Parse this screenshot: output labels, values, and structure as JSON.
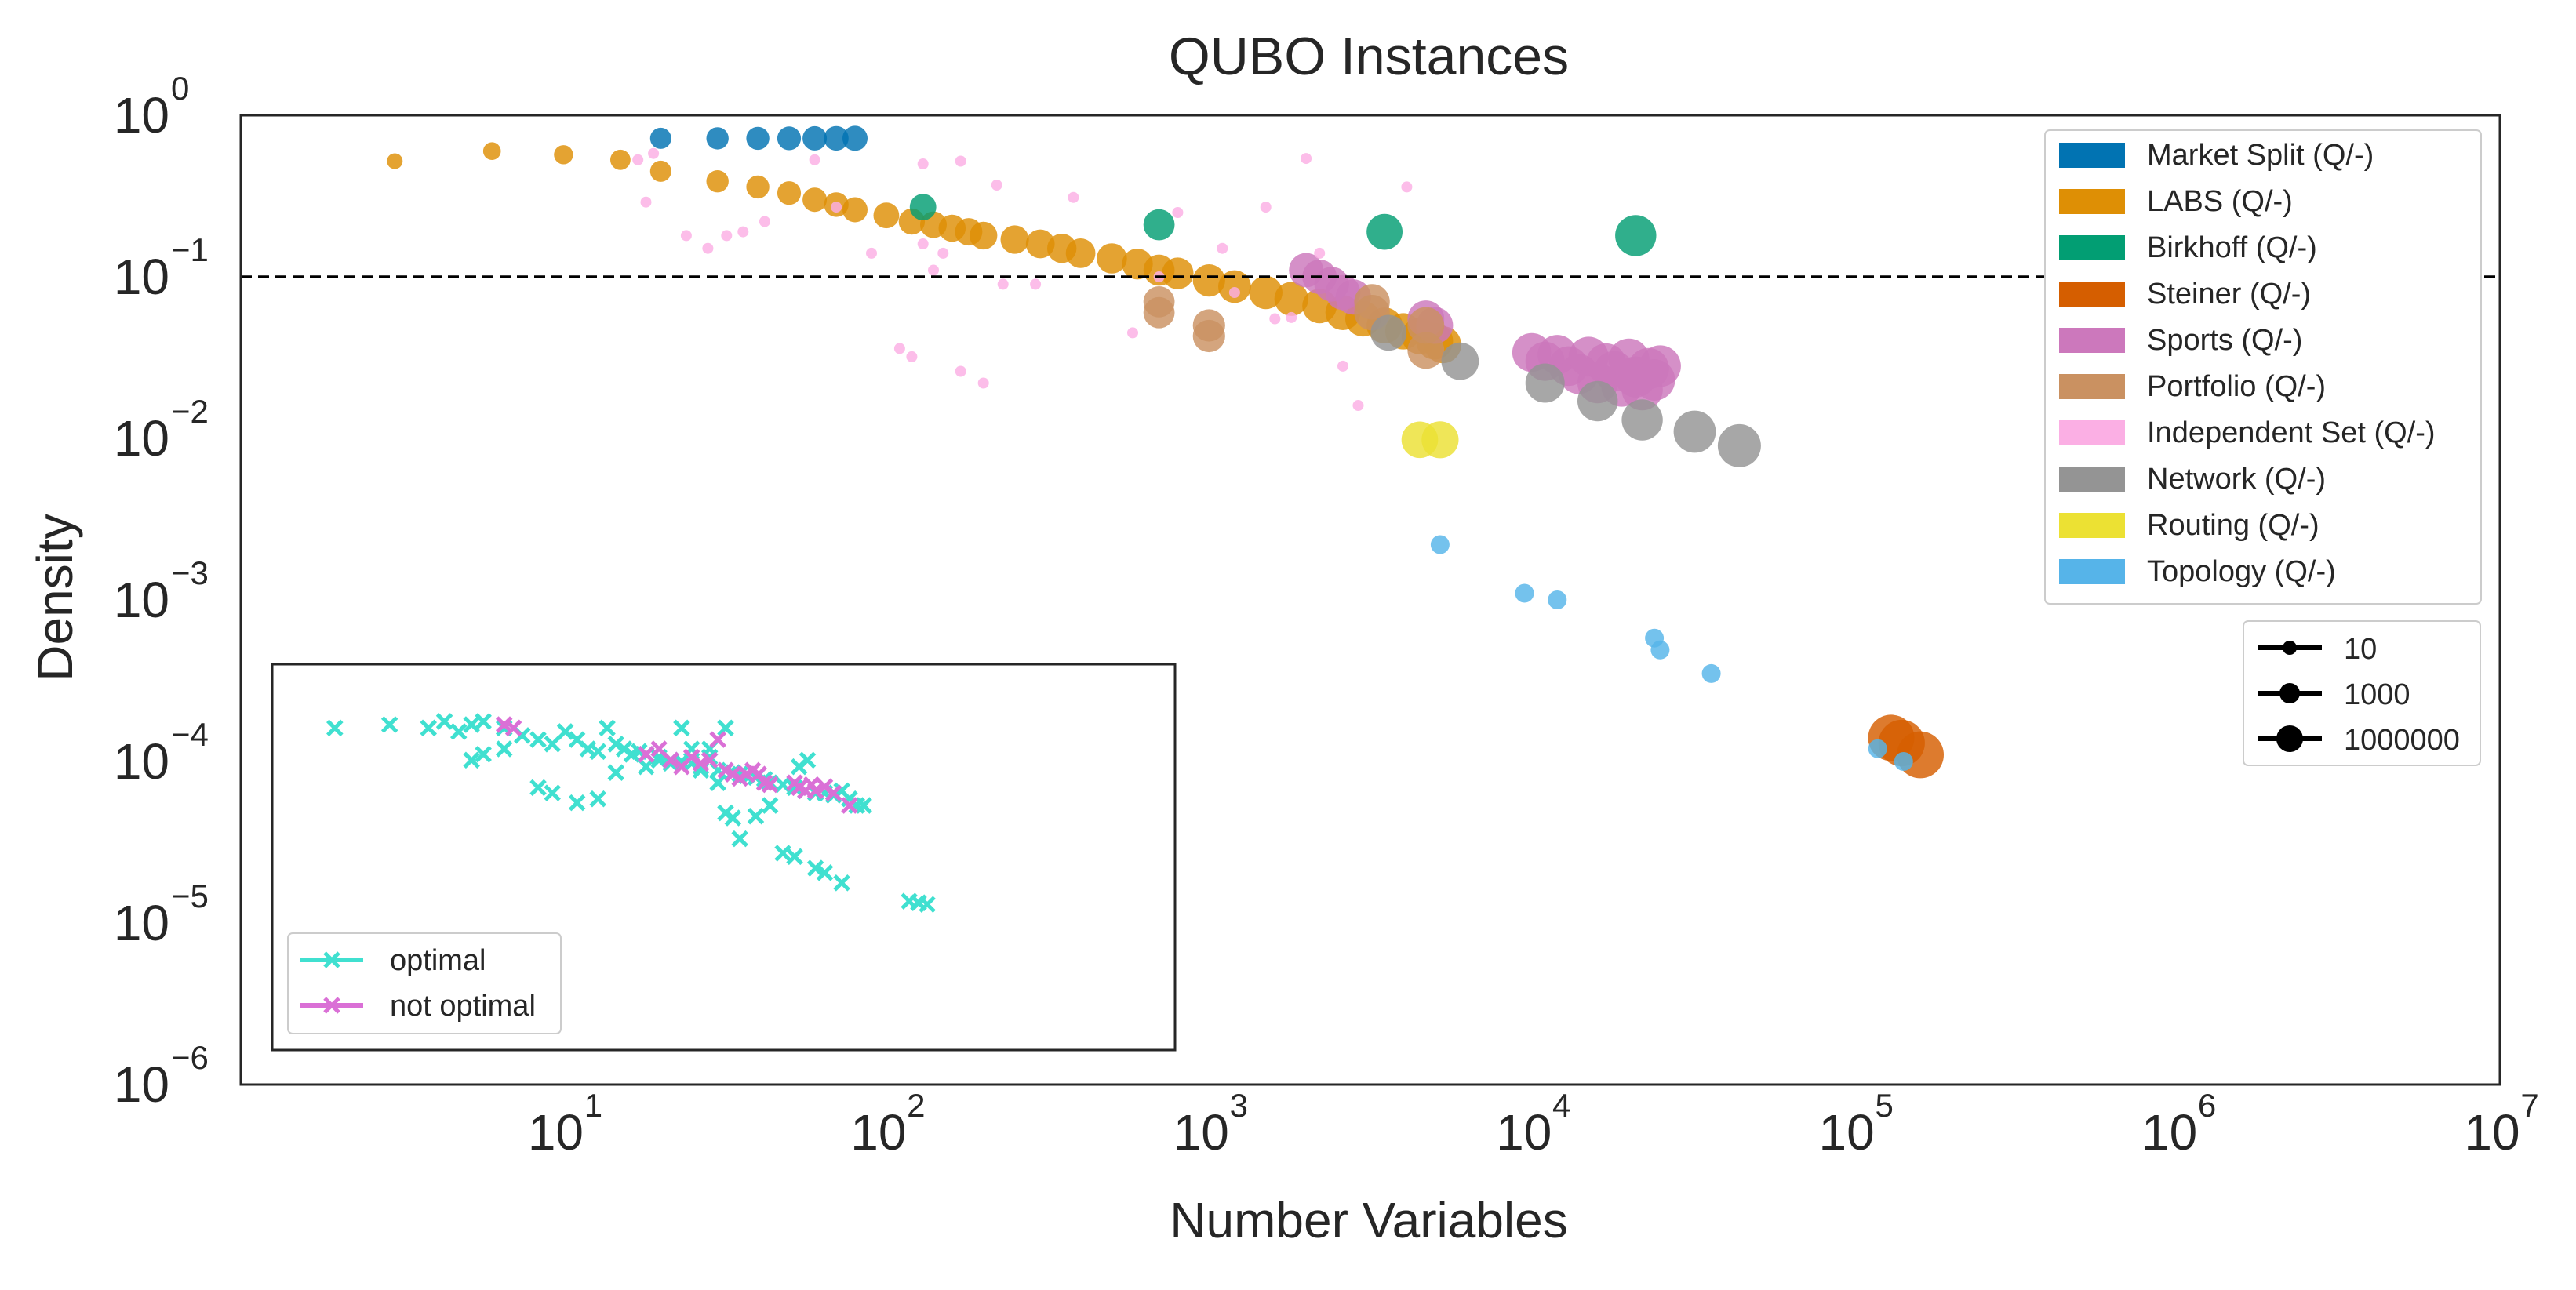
{
  "chart_data": {
    "type": "scatter",
    "title": "QUBO Instances",
    "xlabel": "Number Variables",
    "ylabel": "Density",
    "xscale": "log",
    "yscale": "log",
    "xlim": [
      1,
      10000000
    ],
    "ylim": [
      1e-06,
      1
    ],
    "x_ticks": [
      {
        "base": "10",
        "exp": "1"
      },
      {
        "base": "10",
        "exp": "2"
      },
      {
        "base": "10",
        "exp": "3"
      },
      {
        "base": "10",
        "exp": "4"
      },
      {
        "base": "10",
        "exp": "5"
      },
      {
        "base": "10",
        "exp": "6"
      },
      {
        "base": "10",
        "exp": "7"
      }
    ],
    "y_ticks": [
      {
        "base": "10",
        "exp": "0"
      },
      {
        "base": "10",
        "exp": "−1"
      },
      {
        "base": "10",
        "exp": "−2"
      },
      {
        "base": "10",
        "exp": "−3"
      },
      {
        "base": "10",
        "exp": "−4"
      },
      {
        "base": "10",
        "exp": "−5"
      },
      {
        "base": "10",
        "exp": "−6"
      }
    ],
    "reference_line": {
      "y": 0.1,
      "style": "dashed",
      "color": "#000000"
    },
    "grid": false,
    "legend_position": "top-right",
    "series": [
      {
        "name": "Market Split  (Q/-)",
        "color": "#0173b2",
        "points": [
          [
            20,
            0.72
          ],
          [
            30,
            0.72
          ],
          [
            40,
            0.72
          ],
          [
            50,
            0.72
          ],
          [
            60,
            0.72
          ],
          [
            70,
            0.72
          ],
          [
            80,
            0.72
          ]
        ]
      },
      {
        "name": "LABS (Q/-)",
        "color": "#de8f05",
        "points": [
          [
            3,
            0.52
          ],
          [
            6,
            0.6
          ],
          [
            10,
            0.57
          ],
          [
            15,
            0.53
          ],
          [
            20,
            0.45
          ],
          [
            30,
            0.39
          ],
          [
            40,
            0.36
          ],
          [
            50,
            0.33
          ],
          [
            60,
            0.3
          ],
          [
            70,
            0.28
          ],
          [
            80,
            0.26
          ],
          [
            100,
            0.24
          ],
          [
            120,
            0.22
          ],
          [
            140,
            0.21
          ],
          [
            160,
            0.2
          ],
          [
            180,
            0.19
          ],
          [
            200,
            0.18
          ],
          [
            250,
            0.17
          ],
          [
            300,
            0.16
          ],
          [
            350,
            0.15
          ],
          [
            400,
            0.14
          ],
          [
            500,
            0.13
          ],
          [
            600,
            0.12
          ],
          [
            700,
            0.11
          ],
          [
            800,
            0.105
          ],
          [
            1000,
            0.095
          ],
          [
            1200,
            0.087
          ],
          [
            1500,
            0.08
          ],
          [
            1800,
            0.073
          ],
          [
            2200,
            0.066
          ],
          [
            2600,
            0.06
          ],
          [
            3000,
            0.055
          ],
          [
            3500,
            0.05
          ],
          [
            4000,
            0.046
          ],
          [
            4500,
            0.043
          ],
          [
            5000,
            0.04
          ],
          [
            5300,
            0.038
          ]
        ]
      },
      {
        "name": "Birkhoff (Q/-)",
        "color": "#029e73",
        "points": [
          [
            130,
            0.27
          ],
          [
            700,
            0.21
          ],
          [
            3500,
            0.19
          ],
          [
            21000,
            0.18
          ]
        ]
      },
      {
        "name": "Steiner  (Q/-)",
        "color": "#d55e00",
        "points": [
          [
            130000,
            0.00014
          ],
          [
            140000,
            0.00013
          ],
          [
            160000,
            0.00011
          ]
        ]
      },
      {
        "name": "Sports (Q/-)",
        "color": "#cc78bc",
        "points": [
          [
            2000,
            0.11
          ],
          [
            2200,
            0.1
          ],
          [
            2400,
            0.09
          ],
          [
            2600,
            0.08
          ],
          [
            2800,
            0.075
          ],
          [
            4700,
            0.055
          ],
          [
            5000,
            0.05
          ],
          [
            10000,
            0.034
          ],
          [
            11000,
            0.03
          ],
          [
            12000,
            0.033
          ],
          [
            13000,
            0.028
          ],
          [
            14000,
            0.025
          ],
          [
            15000,
            0.032
          ],
          [
            16000,
            0.022
          ],
          [
            17000,
            0.029
          ],
          [
            18000,
            0.026
          ],
          [
            19000,
            0.021
          ],
          [
            20000,
            0.031
          ],
          [
            21000,
            0.024
          ],
          [
            22000,
            0.02
          ],
          [
            23000,
            0.027
          ],
          [
            24000,
            0.023
          ],
          [
            25000,
            0.028
          ]
        ]
      },
      {
        "name": "Portfolio  (Q/-)",
        "color": "#ca9161",
        "points": [
          [
            700,
            0.07
          ],
          [
            700,
            0.06
          ],
          [
            1000,
            0.05
          ],
          [
            1000,
            0.043
          ],
          [
            3200,
            0.07
          ],
          [
            3200,
            0.06
          ],
          [
            4700,
            0.035
          ],
          [
            4700,
            0.05
          ]
        ]
      },
      {
        "name": "Independent Set  (Q/-)",
        "color": "#fbafe4",
        "points": [
          [
            17,
            0.53
          ],
          [
            18,
            0.29
          ],
          [
            19,
            0.58
          ],
          [
            24,
            0.18
          ],
          [
            28,
            0.15
          ],
          [
            32,
            0.18
          ],
          [
            36,
            0.19
          ],
          [
            42,
            0.22
          ],
          [
            60,
            0.53
          ],
          [
            70,
            0.27
          ],
          [
            90,
            0.14
          ],
          [
            110,
            0.036
          ],
          [
            120,
            0.032
          ],
          [
            130,
            0.5
          ],
          [
            130,
            0.16
          ],
          [
            140,
            0.11
          ],
          [
            150,
            0.14
          ],
          [
            170,
            0.52
          ],
          [
            170,
            0.026
          ],
          [
            200,
            0.022
          ],
          [
            220,
            0.37
          ],
          [
            230,
            0.09
          ],
          [
            290,
            0.09
          ],
          [
            380,
            0.31
          ],
          [
            580,
            0.045
          ],
          [
            700,
            0.1
          ],
          [
            800,
            0.25
          ],
          [
            1100,
            0.15
          ],
          [
            1200,
            0.08
          ],
          [
            1500,
            0.27
          ],
          [
            1600,
            0.055
          ],
          [
            1800,
            0.056
          ],
          [
            2000,
            0.54
          ],
          [
            2200,
            0.14
          ],
          [
            2600,
            0.028
          ],
          [
            2900,
            0.016
          ],
          [
            4100,
            0.36
          ]
        ]
      },
      {
        "name": "Network (Q/-)",
        "color": "#949494",
        "points": [
          [
            3600,
            0.045
          ],
          [
            6000,
            0.03
          ],
          [
            11000,
            0.022
          ],
          [
            16000,
            0.017
          ],
          [
            22000,
            0.013
          ],
          [
            32000,
            0.011
          ],
          [
            44000,
            0.009
          ]
        ]
      },
      {
        "name": "Routing  (Q/-)",
        "color": "#ece133",
        "points": [
          [
            4500,
            0.0098
          ],
          [
            5200,
            0.0098
          ]
        ]
      },
      {
        "name": "Topology (Q/-)",
        "color": "#56b4e9",
        "points": [
          [
            5200,
            0.0022
          ],
          [
            9500,
            0.0011
          ],
          [
            12000,
            0.001
          ],
          [
            24000,
            0.00058
          ],
          [
            25000,
            0.00049
          ],
          [
            36000,
            0.00035
          ],
          [
            118000,
            0.00012
          ],
          [
            142000,
            0.0001
          ]
        ]
      }
    ],
    "size_legend": {
      "position": "right",
      "entries": [
        "10",
        "1000",
        "1000000"
      ]
    },
    "inset": {
      "type": "scatter",
      "position": "lower-left",
      "legend_position": "lower-left",
      "series": [
        {
          "name": "optimal",
          "color": "#40e0d0",
          "marker": "x",
          "points": [
            [
              2,
              0.00016
            ],
            [
              3,
              0.00017
            ],
            [
              4,
              0.00016
            ],
            [
              4.5,
              0.00018
            ],
            [
              5,
              0.00015
            ],
            [
              5.5,
              0.00017
            ],
            [
              6,
              0.00018
            ],
            [
              7,
              0.00016
            ],
            [
              8,
              0.00014
            ],
            [
              9,
              0.00013
            ],
            [
              10,
              0.00012
            ],
            [
              11,
              0.00015
            ],
            [
              12,
              0.00013
            ],
            [
              13,
              0.00011
            ],
            [
              14,
              0.000105
            ],
            [
              15,
              0.00016
            ],
            [
              16,
              0.00012
            ],
            [
              17,
              0.00011
            ],
            [
              18,
              0.0001
            ],
            [
              19,
              0.000105
            ],
            [
              20,
              0.0001
            ],
            [
              22,
              9.5e-05
            ],
            [
              24,
              9e-05
            ],
            [
              26,
              8.8e-05
            ],
            [
              28,
              8.5e-05
            ],
            [
              30,
              8e-05
            ],
            [
              32,
              0.00011
            ],
            [
              34,
              7.5e-05
            ],
            [
              36,
              0.00016
            ],
            [
              38,
              7.2e-05
            ],
            [
              40,
              7e-05
            ],
            [
              42,
              6.8e-05
            ],
            [
              45,
              6.6e-05
            ],
            [
              48,
              6.4e-05
            ],
            [
              50,
              6e-05
            ],
            [
              55,
              5.8e-05
            ],
            [
              60,
              5.5e-05
            ],
            [
              65,
              5.2e-05
            ],
            [
              70,
              5e-05
            ],
            [
              75,
              5e-05
            ],
            [
              80,
              4.8e-05
            ],
            [
              85,
              5.2e-05
            ],
            [
              90,
              4.5e-05
            ],
            [
              95,
              4e-05
            ],
            [
              100,
              4e-05
            ],
            [
              5.5,
              9e-05
            ],
            [
              6,
              0.0001
            ],
            [
              7,
              0.00011
            ],
            [
              9,
              5.5e-05
            ],
            [
              10,
              5e-05
            ],
            [
              12,
              4.2e-05
            ],
            [
              14,
              4.5e-05
            ],
            [
              16,
              7.2e-05
            ],
            [
              18,
              0.0001
            ],
            [
              20,
              8e-05
            ],
            [
              22,
              9e-05
            ],
            [
              24,
              8.5e-05
            ],
            [
              26,
              0.00016
            ],
            [
              28,
              0.00011
            ],
            [
              30,
              7.5e-05
            ],
            [
              32,
              9.5e-05
            ],
            [
              34,
              6e-05
            ],
            [
              36,
              3.5e-05
            ],
            [
              38,
              3.2e-05
            ],
            [
              40,
              2.2e-05
            ],
            [
              45,
              3.3e-05
            ],
            [
              50,
              4e-05
            ],
            [
              55,
              1.7e-05
            ],
            [
              60,
              1.6e-05
            ],
            [
              62,
              8e-05
            ],
            [
              66,
              9e-05
            ],
            [
              70,
              1.3e-05
            ],
            [
              75,
              1.2e-05
            ],
            [
              80,
              5e-05
            ],
            [
              85,
              1e-05
            ],
            [
              140,
              7.2e-06
            ],
            [
              150,
              7e-06
            ],
            [
              160,
              6.8e-06
            ]
          ]
        },
        {
          "name": "not optimal",
          "color": "#da70d6",
          "marker": "x",
          "points": [
            [
              7,
              0.00017
            ],
            [
              7.5,
              0.00016
            ],
            [
              20,
              0.0001
            ],
            [
              22,
              0.00011
            ],
            [
              24,
              9e-05
            ],
            [
              26,
              8e-05
            ],
            [
              28,
              9.5e-05
            ],
            [
              30,
              8.5e-05
            ],
            [
              32,
              9e-05
            ],
            [
              34,
              0.00013
            ],
            [
              36,
              7.5e-05
            ],
            [
              38,
              7e-05
            ],
            [
              40,
              6.5e-05
            ],
            [
              42,
              7e-05
            ],
            [
              44,
              7.5e-05
            ],
            [
              46,
              7e-05
            ],
            [
              48,
              6e-05
            ],
            [
              50,
              5.8e-05
            ],
            [
              60,
              6e-05
            ],
            [
              62,
              5.5e-05
            ],
            [
              65,
              5.2e-05
            ],
            [
              68,
              5.8e-05
            ],
            [
              70,
              5.2e-05
            ],
            [
              75,
              5.6e-05
            ],
            [
              80,
              5e-05
            ],
            [
              90,
              4e-05
            ]
          ]
        }
      ]
    }
  }
}
